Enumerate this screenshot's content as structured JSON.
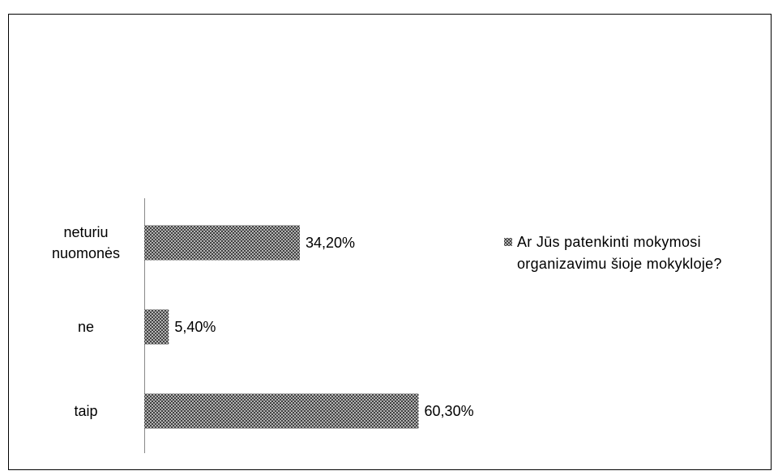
{
  "chart_data": {
    "type": "bar",
    "orientation": "horizontal",
    "categories": [
      "neturiu nuomonės",
      "ne",
      "taip"
    ],
    "series": [
      {
        "name": "Ar Jūs patenkinti mokymosi organizavimu šioje mokykloje?",
        "color": "#404040",
        "values": [
          34.2,
          5.4,
          60.3
        ],
        "value_labels": [
          "34,20%",
          "5,40%",
          "60,30%"
        ]
      }
    ],
    "xlim": [
      0,
      70
    ],
    "legend": "right"
  }
}
